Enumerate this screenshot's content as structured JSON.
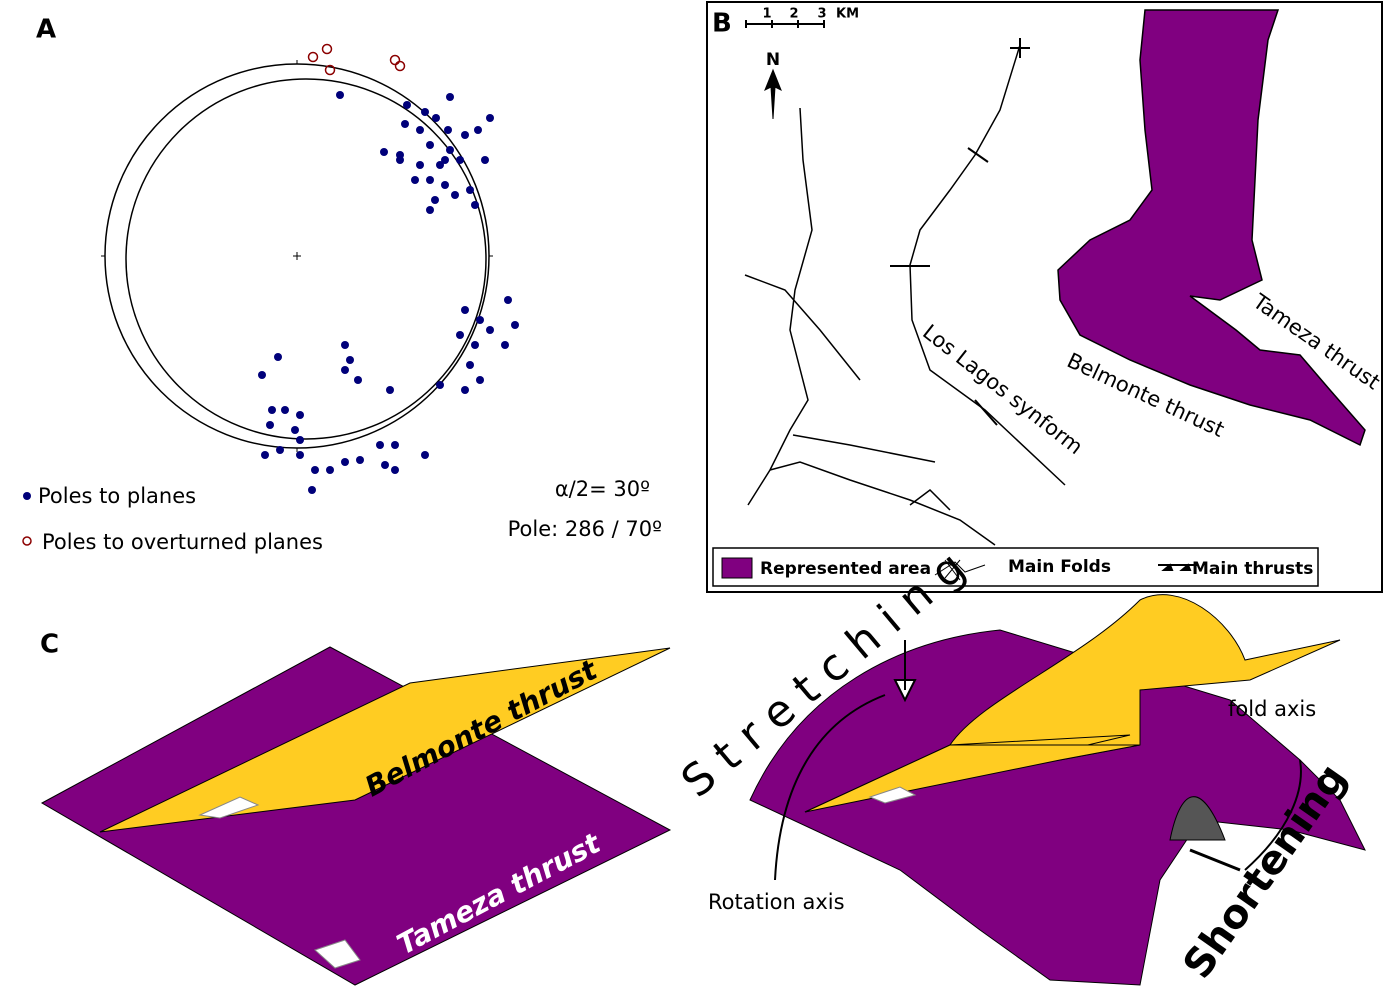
{
  "panels": {
    "a": {
      "label": "A",
      "legend": [
        "Poles to planes",
        "Poles to overturned planes"
      ],
      "cone": "α/2= 30º",
      "pole": "Pole: 286 / 70º"
    },
    "b": {
      "label": "B",
      "scale": [
        "1",
        "2",
        "3",
        "KM"
      ],
      "north": "N",
      "map_labels": [
        "Tameza thrust",
        "Belmonte thrust",
        "Los Lagos synform"
      ],
      "legend": [
        "Represented area",
        "Main Folds",
        "Main thrusts"
      ]
    },
    "c": {
      "label": "C",
      "labels": [
        "Belmonte thrust",
        "Tameza thrust",
        "Stretching",
        "fold axis",
        "Rotation axis",
        "Shortening"
      ]
    }
  }
}
